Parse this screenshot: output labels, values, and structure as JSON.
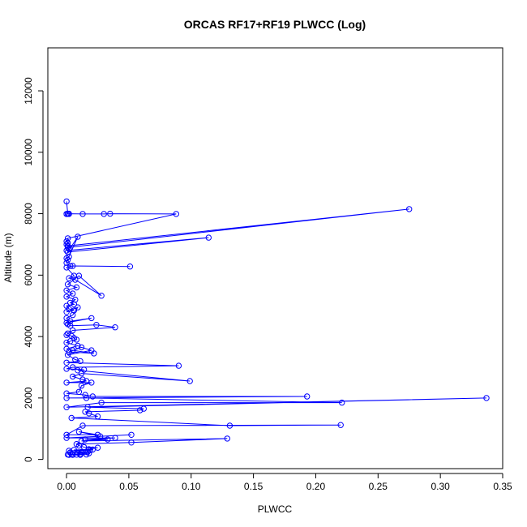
{
  "chart_data": {
    "type": "line",
    "title": "ORCAS RF17+RF19 PLWCC (Log)",
    "xlabel": "PLWCC",
    "ylabel": "Altitude (m)",
    "xlim": [
      -0.015,
      0.35
    ],
    "ylim": [
      -300,
      13400
    ],
    "x_ticks": [
      0,
      0.05,
      0.1,
      0.15,
      0.2,
      0.25,
      0.3,
      0.35
    ],
    "x_tick_labels": [
      "0.00",
      "0.05",
      "0.10",
      "0.15",
      "0.20",
      "0.25",
      "0.30",
      "0.35"
    ],
    "y_ticks": [
      0,
      2000,
      4000,
      6000,
      8000,
      10000,
      12000
    ],
    "y_tick_labels": [
      "0",
      "2000",
      "4000",
      "6000",
      "8000",
      "10000",
      "12000"
    ],
    "color": "#0000ff",
    "grid": false,
    "series": [
      {
        "x": [
          0.0,
          0.001,
          0.0,
          0.001,
          0.002,
          0.0,
          0.002,
          0.013,
          0.03,
          0.035,
          0.088,
          0.001,
          0.0,
          0.001,
          0.0,
          0.001,
          0.275,
          0.001,
          0.002,
          0.0,
          0.114,
          0.001,
          0.009,
          0.002,
          0.0,
          0.001,
          0.0,
          0.003,
          0.051,
          0.005,
          0.0,
          0.006,
          0.002,
          0.007,
          0.028,
          0.01,
          0.001,
          0.008,
          0.0,
          0.005,
          0.0,
          0.007,
          0.003,
          0.006,
          0.0,
          0.002,
          0.006,
          0.0,
          0.009,
          0.005,
          0.0,
          0.003,
          0.02,
          0.0,
          0.001,
          0.003,
          0.024,
          0.039,
          0.005,
          0.001,
          0.0,
          0.004,
          0.006,
          0.008,
          0.003,
          0.0,
          0.009,
          0.0,
          0.005,
          0.022,
          0.002,
          0.012,
          0.02,
          0.001,
          0.007,
          0.011,
          0.0,
          0.09,
          0.005,
          0.0,
          0.014,
          0.009,
          0.099,
          0.012,
          0.005,
          0.013,
          0.016,
          0.0,
          0.02,
          0.012,
          0.01,
          0.0,
          0.015,
          0.021,
          0.193,
          0.0,
          0.016,
          0.221,
          0.028,
          0.0,
          0.337,
          0.017,
          0.062,
          0.059,
          0.015,
          0.018,
          0.025,
          0.004,
          0.131,
          0.22,
          0.013,
          0.0,
          0.025,
          0.01,
          0.027,
          0.052,
          0.0,
          0.039,
          0.015,
          0.033,
          0.012,
          0.129,
          0.052,
          0.008,
          0.01,
          0.014,
          0.025,
          0.018,
          0.021,
          0.006,
          0.019,
          0.002,
          0.017,
          0.012,
          0.003,
          0.009,
          0.018,
          0.011,
          0.004,
          0.001,
          0.016,
          0.008,
          0.005,
          0.011,
          0.002
        ],
        "y": [
          8400,
          8000,
          7990,
          8000,
          7990,
          7990,
          8000,
          7990,
          7990,
          8000,
          7990,
          7200,
          7100,
          7050,
          7000,
          6950,
          8150,
          6900,
          6850,
          6800,
          7220,
          6750,
          7250,
          6600,
          6550,
          6500,
          6400,
          6300,
          6280,
          6300,
          6250,
          5980,
          5900,
          5850,
          5330,
          5980,
          5700,
          5600,
          5500,
          5400,
          5300,
          5200,
          5100,
          5050,
          5000,
          4900,
          4850,
          4800,
          4950,
          4700,
          4600,
          4500,
          4600,
          4450,
          4400,
          4350,
          4380,
          4300,
          4200,
          4100,
          4050,
          4020,
          3950,
          3900,
          3850,
          3800,
          3700,
          3600,
          3550,
          3450,
          3500,
          3650,
          3550,
          3400,
          3250,
          3200,
          3150,
          3050,
          3000,
          2950,
          2920,
          2900,
          2550,
          2800,
          2700,
          2600,
          2550,
          2500,
          2500,
          2400,
          2200,
          2150,
          2100,
          2050,
          2050,
          2000,
          2000,
          1850,
          1850,
          1700,
          2000,
          1700,
          1650,
          1600,
          1550,
          1500,
          1400,
          1350,
          1100,
          1120,
          1100,
          800,
          800,
          900,
          750,
          800,
          700,
          700,
          650,
          650,
          600,
          680,
          550,
          500,
          450,
          400,
          380,
          330,
          320,
          310,
          300,
          280,
          250,
          240,
          230,
          220,
          200,
          180,
          170,
          160,
          160,
          155,
          150,
          150,
          150
        ]
      }
    ]
  }
}
